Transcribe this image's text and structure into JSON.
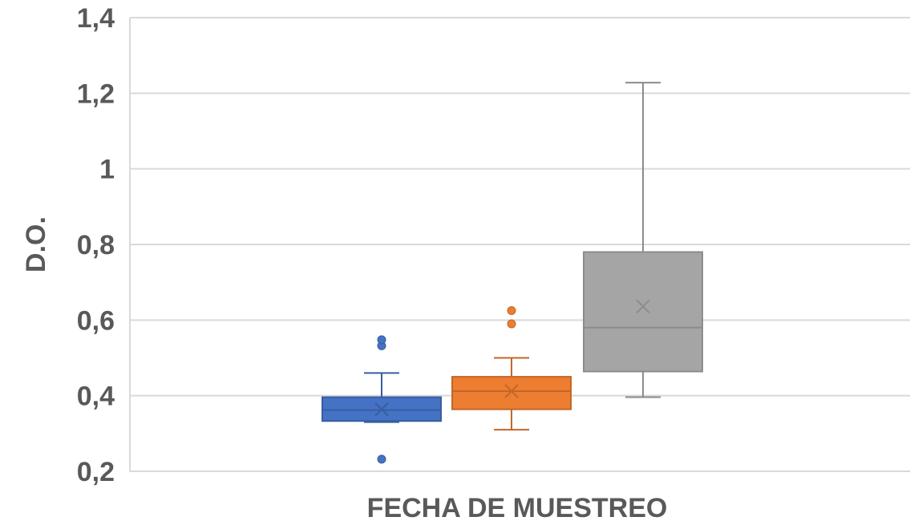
{
  "chart_data": {
    "type": "box",
    "title": "",
    "xlabel": "FECHA DE MUESTREO",
    "ylabel": "D.O.",
    "ylim": [
      0.2,
      1.4
    ],
    "yticks": [
      "0,2",
      "0,4",
      "0,6",
      "0,8",
      "1",
      "1,2",
      "1,4"
    ],
    "grid": true,
    "series": [
      {
        "color": "#4472C4",
        "whisker_low": 0.33,
        "q1": 0.333,
        "median": 0.362,
        "q3": 0.396,
        "whisker_high": 0.46,
        "mean": 0.364,
        "outliers": [
          0.232,
          0.532,
          0.548
        ]
      },
      {
        "color": "#ED7D31",
        "whisker_low": 0.31,
        "q1": 0.364,
        "median": 0.412,
        "q3": 0.45,
        "whisker_high": 0.5,
        "mean": 0.412,
        "outliers": [
          0.59,
          0.625
        ]
      },
      {
        "color": "#A5A5A5",
        "whisker_low": 0.396,
        "q1": 0.464,
        "median": 0.58,
        "q3": 0.78,
        "whisker_high": 1.228,
        "mean": 0.636,
        "outliers": []
      }
    ]
  }
}
